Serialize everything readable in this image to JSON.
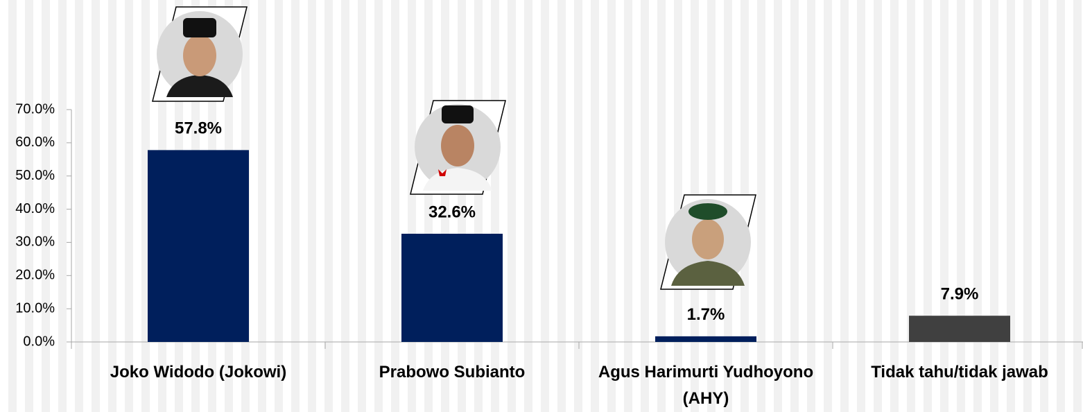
{
  "chart_data": {
    "type": "bar",
    "categories": [
      "Joko Widodo (Jokowi)",
      "Prabowo Subianto",
      "Agus Harimurti Yudhoyono (AHY)",
      "Tidak tahu/tidak jawab"
    ],
    "values": [
      57.8,
      32.6,
      1.7,
      7.9
    ],
    "value_labels": [
      "57.8%",
      "32.6%",
      "1.7%",
      "7.9%"
    ],
    "colors": [
      "#001f5c",
      "#001f5c",
      "#001f5c",
      "#404040"
    ],
    "ylim": [
      0,
      70
    ],
    "yticks": [
      {
        "value": 0,
        "label": "0.0%"
      },
      {
        "value": 10,
        "label": "10.0%"
      },
      {
        "value": 20,
        "label": "20.0%"
      },
      {
        "value": 30,
        "label": "30.0%"
      },
      {
        "value": 40,
        "label": "40.0%"
      },
      {
        "value": 50,
        "label": "50.0%"
      },
      {
        "value": 60,
        "label": "60.0%"
      },
      {
        "value": 70,
        "label": "70.0%"
      }
    ],
    "grid": false
  }
}
